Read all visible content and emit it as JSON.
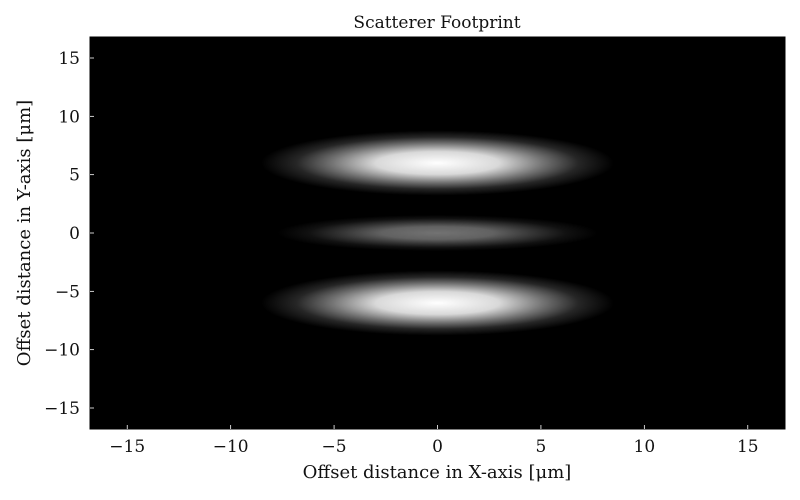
{
  "chart_data": {
    "type": "heatmap",
    "title": "Scatterer Footprint",
    "xlabel": "Offset distance in X-axis [μm]",
    "ylabel": "Offset distance in Y-axis [μm]",
    "xlim": [
      -16.8,
      16.8
    ],
    "ylim": [
      -16.8,
      16.8
    ],
    "xticks": [
      -15,
      -10,
      -5,
      0,
      5,
      10,
      15
    ],
    "yticks": [
      -15,
      -10,
      -5,
      0,
      5,
      10,
      15
    ],
    "xtick_labels": [
      "−15",
      "−10",
      "−5",
      "0",
      "5",
      "10",
      "15"
    ],
    "ytick_labels": [
      "−15",
      "−10",
      "−5",
      "0",
      "5",
      "10",
      "15"
    ],
    "colormap": "grayscale",
    "background_color": "#000000",
    "grid": false,
    "lobes": [
      {
        "x_center": 0,
        "y_center": 6,
        "x_half_width": 5.5,
        "y_half_width": 1.8,
        "peak_intensity": 1.0
      },
      {
        "x_center": 0,
        "y_center": 0,
        "x_half_width": 5.0,
        "y_half_width": 1.0,
        "peak_intensity": 0.45
      },
      {
        "x_center": 0,
        "y_center": -6,
        "x_half_width": 5.5,
        "y_half_width": 1.8,
        "peak_intensity": 1.0
      }
    ]
  }
}
